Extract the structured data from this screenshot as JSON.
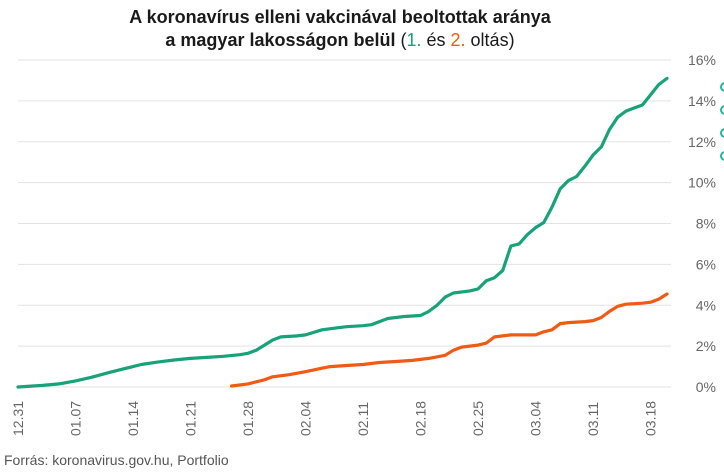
{
  "title": {
    "line1": "A koronavírus elleni vakcinával beoltottak aránya",
    "line2_main": "a magyar lakosságon belül",
    "open_paren": " (",
    "series1_marker": "1.",
    "and_word": " és ",
    "series2_marker": "2.",
    "dose_word": " oltás)"
  },
  "source": "Forrás: koronavirus.gov.hu, Portfolio",
  "colors": {
    "first_dose": "#17a27a",
    "second_dose": "#f05a14",
    "grid": "#e3e3e3",
    "tick_text": "#666666"
  },
  "chart_data": {
    "type": "line",
    "title": "A koronavírus elleni vakcinával beoltottak aránya a magyar lakosságon belül (1. és 2. oltás)",
    "x_unit": "day",
    "x_tick_labels": [
      "12.31",
      "01.07",
      "01.14",
      "01.21",
      "01.28",
      "02.04",
      "02.11",
      "02.18",
      "02.25",
      "03.04",
      "03.11",
      "03.18"
    ],
    "x_tick_days": [
      0,
      7,
      14,
      21,
      28,
      35,
      42,
      49,
      56,
      63,
      70,
      77
    ],
    "xlim": [
      0,
      79
    ],
    "y_tick_labels": [
      "0%",
      "2%",
      "4%",
      "6%",
      "8%",
      "10%",
      "12%",
      "14%",
      "16%"
    ],
    "ylim": [
      0,
      16
    ],
    "y_axis_side": "right",
    "grid": "horizontal",
    "series": [
      {
        "name": "1. oltás",
        "color": "#17a27a",
        "points": [
          [
            0,
            0
          ],
          [
            3,
            0.08
          ],
          [
            5,
            0.15
          ],
          [
            7,
            0.3
          ],
          [
            9,
            0.48
          ],
          [
            11,
            0.7
          ],
          [
            13,
            0.9
          ],
          [
            15,
            1.1
          ],
          [
            17,
            1.22
          ],
          [
            19,
            1.32
          ],
          [
            21,
            1.4
          ],
          [
            23,
            1.45
          ],
          [
            25,
            1.5
          ],
          [
            27,
            1.58
          ],
          [
            28,
            1.65
          ],
          [
            29,
            1.8
          ],
          [
            30,
            2.05
          ],
          [
            31,
            2.3
          ],
          [
            32,
            2.45
          ],
          [
            34,
            2.5
          ],
          [
            35,
            2.55
          ],
          [
            37,
            2.8
          ],
          [
            39,
            2.9
          ],
          [
            40,
            2.95
          ],
          [
            42,
            3.0
          ],
          [
            43,
            3.05
          ],
          [
            44,
            3.2
          ],
          [
            45,
            3.35
          ],
          [
            47,
            3.45
          ],
          [
            49,
            3.5
          ],
          [
            50,
            3.7
          ],
          [
            51,
            4.0
          ],
          [
            52,
            4.4
          ],
          [
            53,
            4.6
          ],
          [
            55,
            4.7
          ],
          [
            56,
            4.8
          ],
          [
            57,
            5.2
          ],
          [
            58,
            5.35
          ],
          [
            59,
            5.7
          ],
          [
            60,
            6.9
          ],
          [
            61,
            7.0
          ],
          [
            62,
            7.45
          ],
          [
            63,
            7.8
          ],
          [
            64,
            8.05
          ],
          [
            65,
            8.8
          ],
          [
            66,
            9.7
          ],
          [
            67,
            10.1
          ],
          [
            68,
            10.3
          ],
          [
            69,
            10.8
          ],
          [
            70,
            11.35
          ],
          [
            71,
            11.75
          ],
          [
            72,
            12.6
          ],
          [
            73,
            13.2
          ],
          [
            74,
            13.5
          ],
          [
            75,
            13.65
          ],
          [
            76,
            13.8
          ],
          [
            77,
            14.3
          ],
          [
            78,
            14.8
          ],
          [
            79,
            15.1
          ]
        ]
      },
      {
        "name": "2. oltás",
        "color": "#f05a14",
        "points": [
          [
            26,
            0.05
          ],
          [
            28,
            0.15
          ],
          [
            30,
            0.35
          ],
          [
            31,
            0.5
          ],
          [
            33,
            0.6
          ],
          [
            35,
            0.75
          ],
          [
            37,
            0.92
          ],
          [
            38,
            1.0
          ],
          [
            40,
            1.05
          ],
          [
            42,
            1.1
          ],
          [
            44,
            1.2
          ],
          [
            46,
            1.25
          ],
          [
            48,
            1.3
          ],
          [
            50,
            1.4
          ],
          [
            52,
            1.55
          ],
          [
            53,
            1.8
          ],
          [
            54,
            1.95
          ],
          [
            56,
            2.05
          ],
          [
            57,
            2.15
          ],
          [
            58,
            2.45
          ],
          [
            60,
            2.55
          ],
          [
            62,
            2.55
          ],
          [
            63,
            2.55
          ],
          [
            64,
            2.7
          ],
          [
            65,
            2.8
          ],
          [
            66,
            3.1
          ],
          [
            67,
            3.15
          ],
          [
            69,
            3.2
          ],
          [
            70,
            3.25
          ],
          [
            71,
            3.4
          ],
          [
            72,
            3.7
          ],
          [
            73,
            3.95
          ],
          [
            74,
            4.05
          ],
          [
            76,
            4.1
          ],
          [
            77,
            4.15
          ],
          [
            78,
            4.3
          ],
          [
            79,
            4.55
          ]
        ]
      }
    ]
  }
}
